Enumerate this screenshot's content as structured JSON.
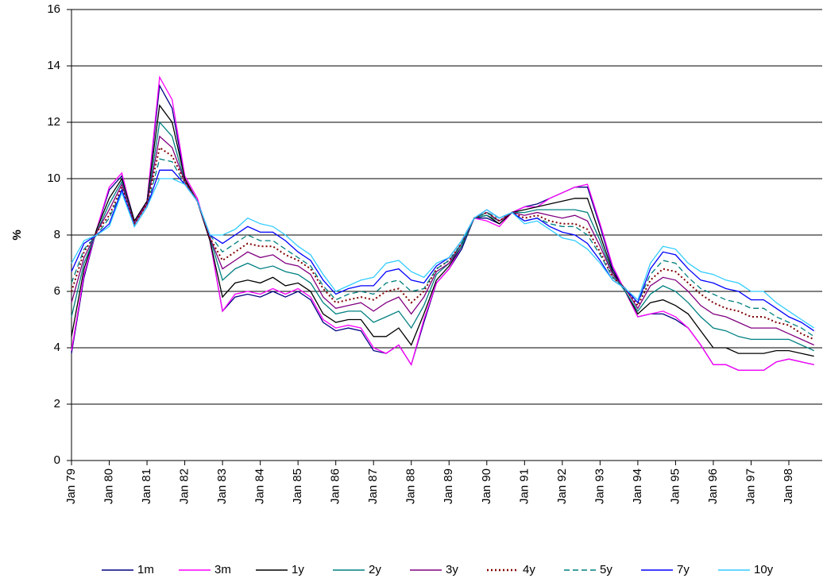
{
  "chart_data": {
    "type": "line",
    "y_label": "%",
    "categories": [
      "Jan 79",
      null,
      null,
      "Jan 80",
      null,
      null,
      "Jan 81",
      null,
      null,
      "Jan 82",
      null,
      null,
      "Jan 83",
      null,
      null,
      "Jan 84",
      null,
      null,
      "Jan 85",
      null,
      null,
      "Jan 86",
      null,
      null,
      "Jan 87",
      null,
      null,
      "Jan 88",
      null,
      null,
      "Jan 89",
      null,
      null,
      "Jan 90",
      null,
      null,
      "Jan 91",
      null,
      null,
      "Jan 92",
      null,
      null,
      "Jan 93",
      null,
      null,
      "Jan 94",
      null,
      null,
      "Jan 95",
      null,
      null,
      "Jan 96",
      null,
      null,
      "Jan 97",
      null,
      null,
      "Jan 98",
      null,
      null
    ],
    "ylim": [
      0,
      16
    ],
    "yticks": [
      0,
      2,
      4,
      6,
      8,
      10,
      12,
      14,
      16
    ],
    "grid": true,
    "legend": "bottom",
    "series": [
      {
        "name": "1m",
        "color": "#000080",
        "values": [
          3.8,
          6.5,
          8.2,
          9.6,
          10.1,
          8.5,
          9.2,
          13.3,
          12.5,
          10.0,
          9.2,
          7.8,
          5.3,
          5.8,
          5.9,
          5.8,
          6.0,
          5.8,
          6.0,
          5.7,
          4.9,
          4.6,
          4.7,
          4.6,
          3.9,
          3.8,
          4.1,
          3.4,
          4.9,
          6.3,
          6.8,
          7.5,
          8.6,
          8.6,
          8.4,
          8.8,
          9.0,
          9.1,
          9.3,
          9.5,
          9.7,
          9.7,
          8.3,
          6.8,
          6.0,
          5.1,
          5.2,
          5.2,
          5.0,
          4.7,
          4.1,
          3.4,
          3.4,
          3.2,
          3.2,
          3.2,
          3.5,
          3.6,
          3.5,
          3.4
        ]
      },
      {
        "name": "3m",
        "color": "#ff00ff",
        "values": [
          3.9,
          6.6,
          8.2,
          9.7,
          10.2,
          8.4,
          9.2,
          13.6,
          12.8,
          10.1,
          9.3,
          7.8,
          5.3,
          5.9,
          6.0,
          5.9,
          6.1,
          5.9,
          6.1,
          5.8,
          5.0,
          4.7,
          4.8,
          4.7,
          4.0,
          3.8,
          4.1,
          3.4,
          5.0,
          6.3,
          6.8,
          7.6,
          8.6,
          8.5,
          8.3,
          8.8,
          9.0,
          9.0,
          9.3,
          9.5,
          9.7,
          9.8,
          8.4,
          6.9,
          6.0,
          5.1,
          5.2,
          5.3,
          5.1,
          4.7,
          4.1,
          3.4,
          3.4,
          3.2,
          3.2,
          3.2,
          3.5,
          3.6,
          3.5,
          3.4
        ]
      },
      {
        "name": "1y",
        "color": "#000000",
        "values": [
          4.4,
          6.8,
          8.2,
          9.3,
          10.0,
          8.5,
          9.2,
          12.6,
          12.0,
          10.0,
          9.2,
          7.8,
          5.8,
          6.3,
          6.4,
          6.3,
          6.5,
          6.2,
          6.3,
          6.0,
          5.2,
          4.9,
          5.0,
          5.0,
          4.4,
          4.4,
          4.7,
          4.1,
          5.2,
          6.4,
          6.9,
          7.6,
          8.6,
          8.7,
          8.4,
          8.8,
          8.9,
          9.0,
          9.1,
          9.2,
          9.3,
          9.3,
          8.0,
          6.7,
          6.0,
          5.2,
          5.6,
          5.7,
          5.5,
          5.2,
          4.6,
          4.0,
          4.0,
          3.8,
          3.8,
          3.8,
          3.9,
          3.9,
          3.8,
          3.7
        ]
      },
      {
        "name": "2y",
        "color": "#008080",
        "values": [
          5.1,
          7.0,
          8.1,
          9.1,
          9.9,
          8.4,
          9.1,
          12.0,
          11.5,
          9.9,
          9.2,
          7.9,
          6.4,
          6.8,
          7.0,
          6.8,
          6.9,
          6.7,
          6.6,
          6.3,
          5.6,
          5.2,
          5.3,
          5.3,
          4.9,
          5.1,
          5.3,
          4.7,
          5.5,
          6.6,
          7.0,
          7.6,
          8.6,
          8.7,
          8.5,
          8.8,
          8.8,
          8.9,
          8.9,
          8.9,
          8.9,
          8.8,
          7.8,
          6.6,
          6.0,
          5.3,
          5.9,
          6.2,
          6.0,
          5.6,
          5.1,
          4.7,
          4.6,
          4.4,
          4.3,
          4.3,
          4.3,
          4.3,
          4.1,
          3.9
        ]
      },
      {
        "name": "3y",
        "color": "#800080",
        "values": [
          5.6,
          7.2,
          8.1,
          8.9,
          9.8,
          8.4,
          9.1,
          11.5,
          11.1,
          9.9,
          9.2,
          7.9,
          6.8,
          7.1,
          7.4,
          7.2,
          7.3,
          7.0,
          6.9,
          6.6,
          5.8,
          5.4,
          5.5,
          5.6,
          5.3,
          5.6,
          5.8,
          5.2,
          5.8,
          6.7,
          7.0,
          7.7,
          8.6,
          8.8,
          8.5,
          8.8,
          8.7,
          8.8,
          8.7,
          8.6,
          8.7,
          8.5,
          7.6,
          6.6,
          6.1,
          5.4,
          6.2,
          6.5,
          6.4,
          6.0,
          5.5,
          5.2,
          5.1,
          4.9,
          4.7,
          4.7,
          4.7,
          4.5,
          4.3,
          4.1
        ]
      },
      {
        "name": "4y",
        "color": "#800000",
        "dash": "dotted",
        "values": [
          6.0,
          7.4,
          8.1,
          8.7,
          9.7,
          8.4,
          9.1,
          11.1,
          10.8,
          9.9,
          9.2,
          7.9,
          7.1,
          7.4,
          7.7,
          7.6,
          7.6,
          7.3,
          7.1,
          6.8,
          6.1,
          5.6,
          5.7,
          5.8,
          5.7,
          6.0,
          6.1,
          5.6,
          6.0,
          6.8,
          7.1,
          7.7,
          8.6,
          8.8,
          8.5,
          8.8,
          8.6,
          8.7,
          8.5,
          8.4,
          8.4,
          8.2,
          7.4,
          6.5,
          6.1,
          5.5,
          6.4,
          6.8,
          6.7,
          6.3,
          5.9,
          5.6,
          5.4,
          5.3,
          5.1,
          5.1,
          4.9,
          4.8,
          4.5,
          4.3
        ]
      },
      {
        "name": "5y",
        "color": "#008080",
        "dash": "dashed",
        "values": [
          6.3,
          7.5,
          8.0,
          8.6,
          9.6,
          8.3,
          9.0,
          10.7,
          10.6,
          9.8,
          9.2,
          8.0,
          7.4,
          7.7,
          8.0,
          7.8,
          7.8,
          7.5,
          7.2,
          6.9,
          6.2,
          5.7,
          5.9,
          6.0,
          5.9,
          6.3,
          6.4,
          6.0,
          6.1,
          6.8,
          7.1,
          7.7,
          8.6,
          8.8,
          8.6,
          8.8,
          8.5,
          8.6,
          8.4,
          8.3,
          8.3,
          8.0,
          7.3,
          6.5,
          6.1,
          5.6,
          6.6,
          7.1,
          7.0,
          6.5,
          6.1,
          5.9,
          5.7,
          5.6,
          5.4,
          5.4,
          5.1,
          4.9,
          4.7,
          4.4
        ]
      },
      {
        "name": "7y",
        "color": "#0000ff",
        "values": [
          6.7,
          7.7,
          8.0,
          8.4,
          9.6,
          8.3,
          9.0,
          10.3,
          10.3,
          9.8,
          9.2,
          8.0,
          7.7,
          8.0,
          8.3,
          8.1,
          8.1,
          7.8,
          7.4,
          7.1,
          6.4,
          5.9,
          6.1,
          6.2,
          6.2,
          6.7,
          6.8,
          6.4,
          6.3,
          6.9,
          7.2,
          7.8,
          8.6,
          8.9,
          8.6,
          8.8,
          8.5,
          8.6,
          8.3,
          8.1,
          8.0,
          7.7,
          7.1,
          6.4,
          6.1,
          5.6,
          6.8,
          7.4,
          7.3,
          6.8,
          6.4,
          6.3,
          6.1,
          6.0,
          5.7,
          5.7,
          5.4,
          5.1,
          4.9,
          4.6
        ]
      },
      {
        "name": "10y",
        "color": "#33ccff",
        "values": [
          7.0,
          7.8,
          8.0,
          8.3,
          9.5,
          8.3,
          9.0,
          10.0,
          10.0,
          9.8,
          9.2,
          8.0,
          8.0,
          8.2,
          8.6,
          8.4,
          8.3,
          8.0,
          7.6,
          7.3,
          6.6,
          6.0,
          6.2,
          6.4,
          6.5,
          7.0,
          7.1,
          6.7,
          6.5,
          7.0,
          7.2,
          7.8,
          8.6,
          8.9,
          8.6,
          8.8,
          8.4,
          8.5,
          8.2,
          7.9,
          7.8,
          7.5,
          7.0,
          6.4,
          6.1,
          5.7,
          7.0,
          7.6,
          7.5,
          7.0,
          6.7,
          6.6,
          6.4,
          6.3,
          6.0,
          6.0,
          5.6,
          5.3,
          5.0,
          4.7
        ]
      }
    ]
  }
}
